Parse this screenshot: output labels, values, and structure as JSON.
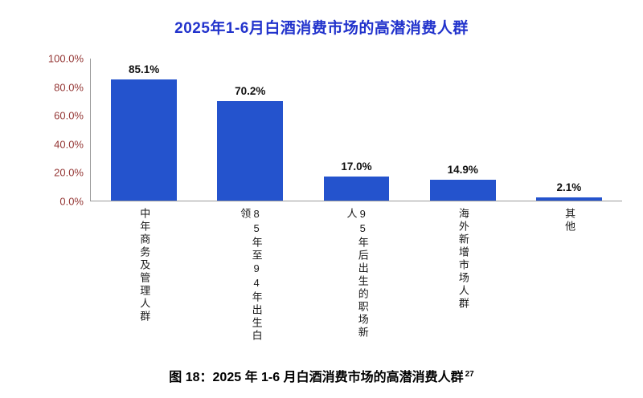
{
  "title": "2025年1-6月白酒消费市场的高潜消费人群",
  "caption": {
    "text": "图 18：2025 年 1-6 月白酒消费市场的高潜消费人群",
    "superscript": "27"
  },
  "colors": {
    "bar": "#2453cd",
    "title": "#2233cc",
    "ytick_label": "#943634",
    "value_label": "#111111"
  },
  "chart_data": {
    "type": "bar",
    "title": "2025年1-6月白酒消费市场的高潜消费人群",
    "categories": [
      "中年商务及管理人群",
      "85年至94年出生白领",
      "95年后出生的职场新人",
      "海外新增市场人群",
      "其他"
    ],
    "values": [
      85.1,
      70.2,
      17.0,
      14.9,
      2.1
    ],
    "value_labels": [
      "85.1%",
      "70.2%",
      "17.0%",
      "14.9%",
      "2.1%"
    ],
    "yticks": [
      "100.0%",
      "80.0%",
      "60.0%",
      "40.0%",
      "20.0%",
      "0.0%"
    ],
    "ylim": [
      0,
      100
    ],
    "xlabel": "",
    "ylabel": "",
    "grid": false,
    "legend": false
  }
}
